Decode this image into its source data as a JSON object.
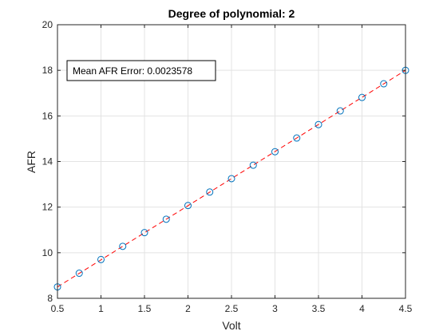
{
  "chart_data": {
    "type": "scatter",
    "title": "Degree of polynomial: 2",
    "xlabel": "Volt",
    "ylabel": "AFR",
    "xlim": [
      0.5,
      4.5
    ],
    "ylim": [
      8,
      20
    ],
    "xticks": [
      0.5,
      1,
      1.5,
      2,
      2.5,
      3,
      3.5,
      4,
      4.5
    ],
    "yticks": [
      8,
      10,
      12,
      14,
      16,
      18,
      20
    ],
    "xtick_labels": [
      "0.5",
      "1",
      "1.5",
      "2",
      "2.5",
      "3",
      "3.5",
      "4",
      "4.5"
    ],
    "ytick_labels": [
      "8",
      "10",
      "12",
      "14",
      "16",
      "18",
      "20"
    ],
    "grid": true,
    "series": [
      {
        "type": "scatter",
        "marker": "circle-open",
        "color": "#0072BD",
        "x": [
          0.5,
          0.75,
          1,
          1.25,
          1.5,
          1.75,
          2,
          2.25,
          2.5,
          2.75,
          3,
          3.25,
          3.5,
          3.75,
          4,
          4.25,
          4.5
        ],
        "y": [
          8.5,
          9.1,
          9.7,
          10.28,
          10.88,
          11.47,
          12.07,
          12.66,
          13.25,
          13.84,
          14.43,
          15.03,
          15.62,
          16.22,
          16.81,
          17.41,
          18.0
        ]
      },
      {
        "type": "line",
        "style": "dashed",
        "color": "#FF0000",
        "x": [
          0.5,
          4.5
        ],
        "y": [
          8.5,
          18.0
        ]
      }
    ],
    "annotations": [
      {
        "text": "Mean AFR Error: 0.0023578",
        "position": "upper-left"
      }
    ]
  }
}
